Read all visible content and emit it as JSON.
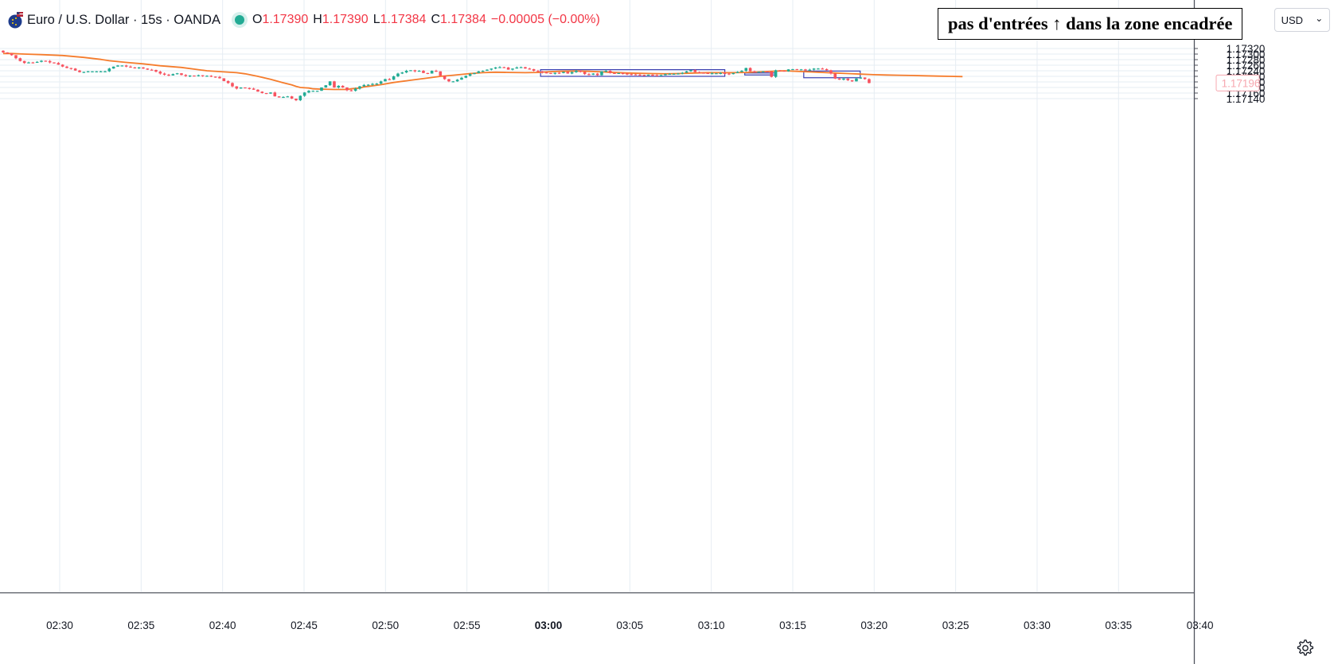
{
  "legend": {
    "symbol": "Euro / U.S. Dollar · 15s · OANDA",
    "open_label": "O",
    "open": "1.17390",
    "high_label": "H",
    "high": "1.17390",
    "low_label": "L",
    "low": "1.17384",
    "close_label": "C",
    "close": "1.17384",
    "change": "−0.00005 (−0.00%)"
  },
  "annotation": "pas d'entrées ↑ dans la zone encadrée",
  "currency_button": {
    "label": "USD",
    "chevron": "⌄"
  },
  "icons": {
    "settings": "gear-icon",
    "logo": "flag-logo-icon"
  },
  "colors": {
    "up": "#22ab94",
    "down": "#f7525f",
    "ma": "#f57c2c",
    "box": "#3a3fb0",
    "grid": "#e6edf3"
  },
  "chart_data": {
    "type": "candlestick",
    "interval": "15s",
    "ylim": [
      1.17126,
      1.17328
    ],
    "y_ticks": [
      "1.17320",
      "1.17300",
      "1.17280",
      "1.17260",
      "1.17240",
      "1.17220",
      "1.17200",
      "1.17180",
      "1.17160",
      "1.17140"
    ],
    "x_ticks": [
      "02:30",
      "02:35",
      "02:40",
      "02:45",
      "02:50",
      "02:55",
      "03:00",
      "03:05",
      "03:10",
      "03:15",
      "03:20",
      "03:25",
      "03:30",
      "03:35",
      "03:40"
    ],
    "x_tick_bold": "03:00",
    "last_price": "1.17196",
    "closes": [
      1.17306,
      1.17302,
      1.17296,
      1.17285,
      1.17275,
      1.17268,
      1.1727,
      1.17269,
      1.17272,
      1.17276,
      1.17275,
      1.1727,
      1.17268,
      1.17262,
      1.17255,
      1.1725,
      1.17248,
      1.17241,
      1.17235,
      1.17236,
      1.17238,
      1.17238,
      1.17238,
      1.17238,
      1.17238,
      1.17248,
      1.17255,
      1.17259,
      1.17259,
      1.17255,
      1.17252,
      1.1725,
      1.17252,
      1.17248,
      1.17244,
      1.17243,
      1.17237,
      1.1723,
      1.17226,
      1.17223,
      1.17228,
      1.17231,
      1.17225,
      1.17221,
      1.17223,
      1.17221,
      1.17224,
      1.17222,
      1.17222,
      1.17219,
      1.17218,
      1.17213,
      1.17203,
      1.17196,
      1.17184,
      1.17176,
      1.1718,
      1.17178,
      1.17176,
      1.17172,
      1.17165,
      1.1716,
      1.17158,
      1.17162,
      1.17148,
      1.17144,
      1.17146,
      1.17148,
      1.1714,
      1.17134,
      1.1715,
      1.17162,
      1.17168,
      1.17168,
      1.17168,
      1.1718,
      1.17188,
      1.17202,
      1.1718,
      1.17186,
      1.1718,
      1.1717,
      1.17168,
      1.17176,
      1.17184,
      1.17189,
      1.1719,
      1.17193,
      1.17194,
      1.17202,
      1.1721,
      1.17208,
      1.1722,
      1.1723,
      1.17234,
      1.1724,
      1.17242,
      1.17238,
      1.1724,
      1.17232,
      1.1723,
      1.1724,
      1.17238,
      1.17222,
      1.1721,
      1.17202,
      1.17202,
      1.17208,
      1.17215,
      1.17222,
      1.17228,
      1.17232,
      1.17238,
      1.1724,
      1.17244,
      1.17248,
      1.17252,
      1.17253,
      1.17252,
      1.17244,
      1.17248,
      1.17252,
      1.17253,
      1.17248,
      1.17246,
      1.1724,
      1.17238,
      1.17234,
      1.17232,
      1.17229,
      1.17233,
      1.17232,
      1.17236,
      1.1723,
      1.17235,
      1.1724,
      1.17236,
      1.17228,
      1.17226,
      1.1723,
      1.17224,
      1.17238,
      1.1724,
      1.17232,
      1.1723,
      1.17232,
      1.1723,
      1.17228,
      1.17227,
      1.17226,
      1.17225,
      1.17224,
      1.17226,
      1.17224,
      1.17223,
      1.17224,
      1.17228,
      1.17229,
      1.17229,
      1.1723,
      1.17233,
      1.17238,
      1.17243,
      1.17235,
      1.17233,
      1.17232,
      1.17231,
      1.17231,
      1.17231,
      1.17232,
      1.1723,
      1.17228,
      1.17232,
      1.17236,
      1.1724,
      1.1725,
      1.17238,
      1.17237,
      1.17237,
      1.17238,
      1.17237,
      1.17218,
      1.17242,
      1.1724,
      1.17238,
      1.17245,
      1.17246,
      1.17245,
      1.17245,
      1.17242,
      1.17244,
      1.17248,
      1.17248,
      1.17246,
      1.17242,
      1.1723,
      1.17212,
      1.17208,
      1.17212,
      1.17206,
      1.17202,
      1.17212,
      1.17216,
      1.1721,
      1.17196
    ],
    "moving_average": {
      "x": [
        0,
        0.5,
        1,
        2,
        5,
        9,
        14,
        19,
        23,
        25,
        29,
        33,
        37,
        42,
        46,
        48,
        52,
        55,
        57,
        60,
        63,
        66,
        68,
        69,
        70,
        72,
        73,
        75,
        78,
        81,
        82,
        84,
        85,
        89,
        92,
        95,
        96,
        98,
        100,
        103,
        106,
        110,
        113,
        116,
        119,
        123,
        126,
        128,
        131,
        135,
        138,
        141,
        144,
        147,
        150,
        153,
        156,
        159,
        163,
        166,
        169,
        172,
        175,
        178,
        181,
        184,
        187,
        190,
        193,
        196,
        199,
        202,
        205,
        208,
        211,
        214,
        217,
        220,
        223,
        226
      ],
      "y": [
        1.17302,
        1.17302,
        1.17302,
        1.17302,
        1.173,
        1.17298,
        1.17295,
        1.17288,
        1.17281,
        1.17276,
        1.1727,
        1.17265,
        1.17258,
        1.17252,
        1.17244,
        1.1724,
        1.17236,
        1.17233,
        1.17229,
        1.1722,
        1.17209,
        1.17197,
        1.17189,
        1.17184,
        1.1718,
        1.17178,
        1.17175,
        1.17174,
        1.17173,
        1.17173,
        1.17175,
        1.17178,
        1.17182,
        1.1719,
        1.17198,
        1.17204,
        1.17206,
        1.1721,
        1.17214,
        1.1722,
        1.17224,
        1.1723,
        1.17233,
        1.17235,
        1.17234,
        1.17233,
        1.17234,
        1.17236,
        1.17238,
        1.17239,
        1.17238,
        1.17236,
        1.17234,
        1.17232,
        1.17231,
        1.1723,
        1.17229,
        1.1723,
        1.17232,
        1.17233,
        1.17233,
        1.17233,
        1.17234,
        1.17236,
        1.17238,
        1.1724,
        1.17238,
        1.17236,
        1.17234,
        1.17232,
        1.1723,
        1.17228,
        1.17226,
        1.17225,
        1.17224,
        1.17223,
        1.17222,
        1.17221,
        1.1722,
        1.17219
      ]
    },
    "boxes": [
      {
        "x0": 126.6,
        "x1": 170.0,
        "y0": 1.17244,
        "y1": 1.1722
      },
      {
        "x0": 174.7,
        "x1": 182.0,
        "y0": 1.17232,
        "y1": 1.17225
      },
      {
        "x0": 188.6,
        "x1": 201.9,
        "y0": 1.17239,
        "y1": 1.17215
      }
    ]
  }
}
